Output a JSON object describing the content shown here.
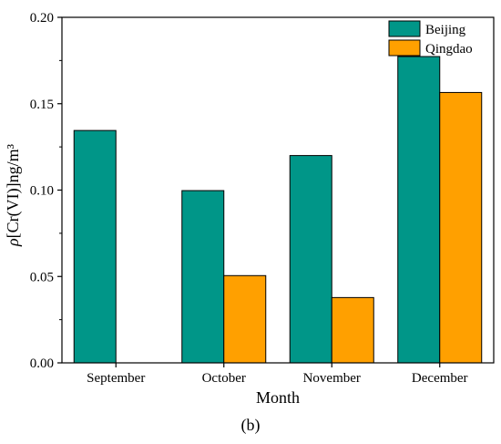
{
  "chart_data": {
    "type": "bar",
    "categories": [
      "September",
      "October",
      "November",
      "December"
    ],
    "series": [
      {
        "name": "Beijing",
        "values": [
          0.1345,
          0.0997,
          0.12,
          0.1773
        ],
        "color": "#009688"
      },
      {
        "name": "Qingdao",
        "values": [
          null,
          0.0505,
          0.0378,
          0.1565
        ],
        "color": "#FFA000"
      }
    ],
    "xlabel": "Month",
    "ylabel_prefix": "ρ",
    "ylabel_rest": "[Cr(VI)]ng/m³",
    "ylim": [
      0,
      0.2
    ],
    "yticks": [
      "0.00",
      "0.05",
      "0.10",
      "0.15",
      "0.20"
    ],
    "legend_position": "top-right",
    "grid": false,
    "panel_label": "(b)"
  }
}
